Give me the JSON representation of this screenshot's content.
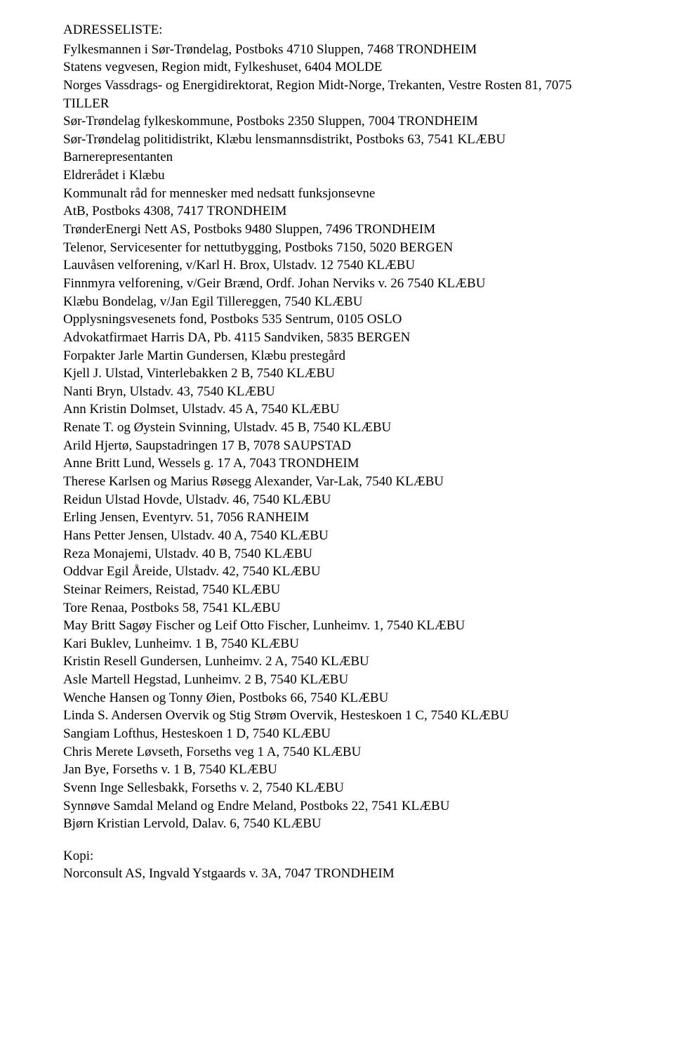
{
  "heading": "ADRESSELISTE:",
  "addresses": [
    "Fylkesmannen i Sør-Trøndelag, Postboks 4710 Sluppen, 7468 TRONDHEIM",
    "Statens vegvesen, Region midt, Fylkeshuset, 6404 MOLDE",
    "Norges Vassdrags- og Energidirektorat, Region Midt-Norge, Trekanten, Vestre Rosten 81, 7075 TILLER",
    "Sør-Trøndelag fylkeskommune, Postboks 2350 Sluppen, 7004 TRONDHEIM",
    "Sør-Trøndelag politidistrikt, Klæbu lensmannsdistrikt, Postboks 63, 7541 KLÆBU",
    "Barnerepresentanten",
    "Eldrerådet i Klæbu",
    "Kommunalt råd for mennesker med nedsatt funksjonsevne",
    "AtB, Postboks 4308, 7417 TRONDHEIM",
    "TrønderEnergi Nett AS, Postboks 9480 Sluppen, 7496 TRONDHEIM",
    "Telenor, Servicesenter for nettutbygging, Postboks 7150, 5020 BERGEN",
    "Lauvåsen velforening, v/Karl H. Brox, Ulstadv. 12 7540 KLÆBU",
    "Finnmyra velforening, v/Geir Brænd, Ordf. Johan Nerviks v. 26 7540 KLÆBU",
    "Klæbu Bondelag, v/Jan Egil Tillereggen, 7540 KLÆBU",
    "Opplysningsvesenets fond, Postboks 535 Sentrum, 0105 OSLO",
    "Advokatfirmaet Harris DA, Pb. 4115 Sandviken, 5835 BERGEN",
    "Forpakter Jarle Martin Gundersen, Klæbu prestegård",
    "Kjell J. Ulstad, Vinterlebakken 2 B, 7540 KLÆBU",
    "Nanti Bryn, Ulstadv. 43, 7540 KLÆBU",
    "Ann Kristin Dolmset, Ulstadv. 45 A, 7540 KLÆBU",
    "Renate T. og Øystein Svinning, Ulstadv. 45 B, 7540 KLÆBU",
    "Arild Hjertø, Saupstadringen 17 B, 7078 SAUPSTAD",
    "Anne Britt Lund, Wessels g. 17 A, 7043 TRONDHEIM",
    "Therese Karlsen og Marius Røsegg Alexander, Var-Lak, 7540 KLÆBU",
    "Reidun Ulstad Hovde, Ulstadv. 46, 7540 KLÆBU",
    "Erling Jensen, Eventyrv. 51, 7056 RANHEIM",
    "Hans Petter Jensen, Ulstadv. 40 A, 7540 KLÆBU",
    "Reza Monajemi, Ulstadv. 40 B, 7540 KLÆBU",
    "Oddvar Egil Åreide, Ulstadv. 42, 7540 KLÆBU",
    "Steinar Reimers, Reistad, 7540 KLÆBU",
    "Tore Renaa, Postboks 58, 7541 KLÆBU",
    "May Britt Sagøy Fischer og Leif Otto Fischer, Lunheimv. 1, 7540 KLÆBU",
    "Kari Buklev, Lunheimv. 1 B, 7540 KLÆBU",
    "Kristin Resell Gundersen, Lunheimv. 2 A, 7540 KLÆBU",
    "Asle Martell Hegstad, Lunheimv. 2 B, 7540 KLÆBU",
    "Wenche Hansen og Tonny Øien, Postboks 66, 7540 KLÆBU",
    "Linda S. Andersen Overvik og Stig Strøm Overvik, Hesteskoen 1 C, 7540 KLÆBU",
    "Sangiam Lofthus, Hesteskoen 1 D, 7540 KLÆBU",
    "Chris Merete Løvseth, Forseths veg 1 A, 7540 KLÆBU",
    "Jan Bye, Forseths v. 1 B, 7540 KLÆBU",
    "Svenn Inge Sellesbakk, Forseths v. 2, 7540 KLÆBU",
    "Synnøve Samdal Meland og Endre Meland, Postboks 22, 7541 KLÆBU",
    "Bjørn Kristian Lervold, Dalav. 6, 7540 KLÆBU"
  ],
  "copy_heading": "Kopi:",
  "copies": [
    "Norconsult AS, Ingvald Ystgaards v. 3A, 7047 TRONDHEIM"
  ],
  "text_color": "#000000",
  "background_color": "#ffffff",
  "font_family": "Times New Roman",
  "font_size_pt": 14
}
